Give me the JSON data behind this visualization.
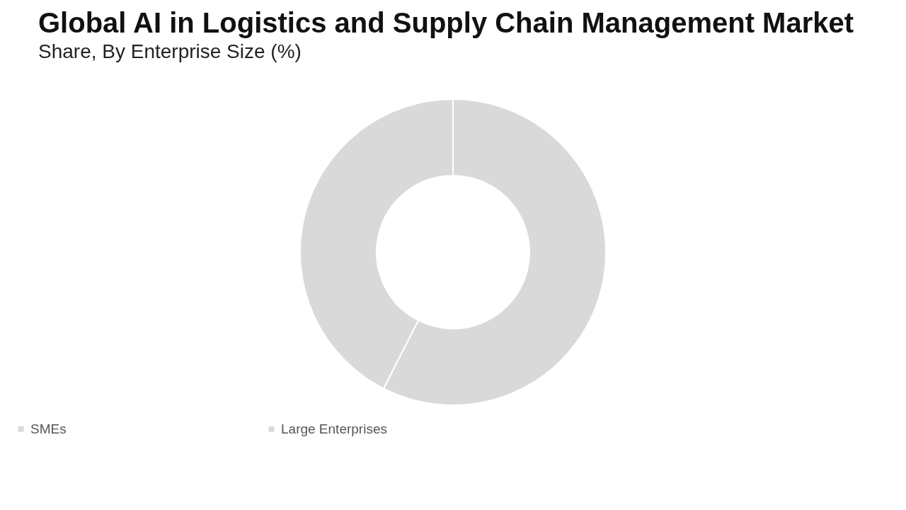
{
  "chart_data": {
    "type": "donut",
    "title": "Global AI in Logistics and Supply Chain Management Market",
    "subtitle": "Share, By Enterprise Size (%)",
    "categories": [
      "SMEs",
      "Large Enterprises"
    ],
    "values": [
      57.5,
      42.5
    ],
    "colors": [
      "#d9d9d9",
      "#d9d9d9"
    ],
    "legend": "bottom"
  }
}
